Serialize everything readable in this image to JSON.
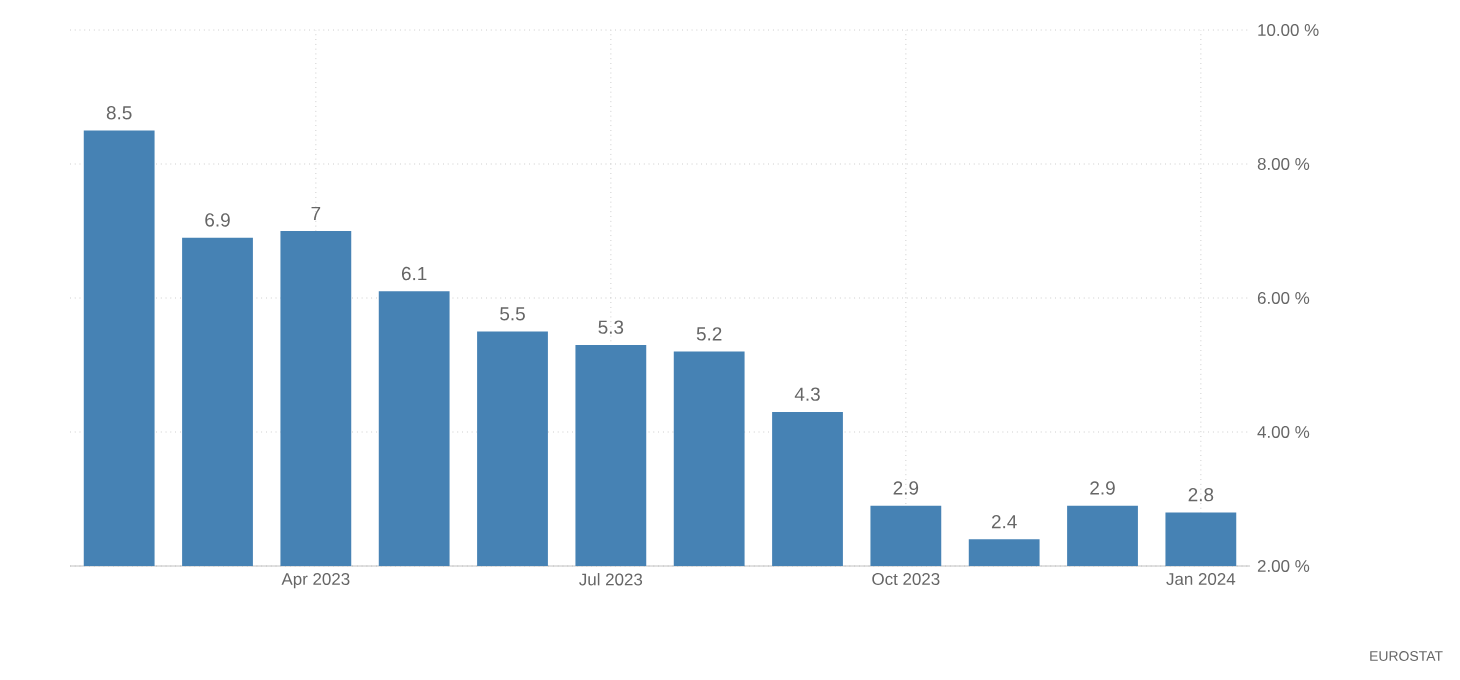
{
  "chart_data": {
    "type": "bar",
    "categories": [
      null,
      null,
      "Apr 2023",
      null,
      null,
      "Jul 2023",
      null,
      null,
      "Oct 2023",
      null,
      null,
      "Jan 2024"
    ],
    "values": [
      8.5,
      6.9,
      7,
      6.1,
      5.5,
      5.3,
      5.2,
      4.3,
      2.9,
      2.4,
      2.9,
      2.8
    ],
    "color": "#4682b4",
    "ylim": [
      2,
      10
    ],
    "yticks": [
      {
        "value": 2,
        "label": "2.00 %"
      },
      {
        "value": 4,
        "label": "4.00 %"
      },
      {
        "value": 6,
        "label": "6.00 %"
      },
      {
        "value": 8,
        "label": "8.00 %"
      },
      {
        "value": 10,
        "label": "10.00 %"
      }
    ],
    "grid": true,
    "data_labels": true,
    "annotations": [
      "EUROSTAT"
    ]
  }
}
